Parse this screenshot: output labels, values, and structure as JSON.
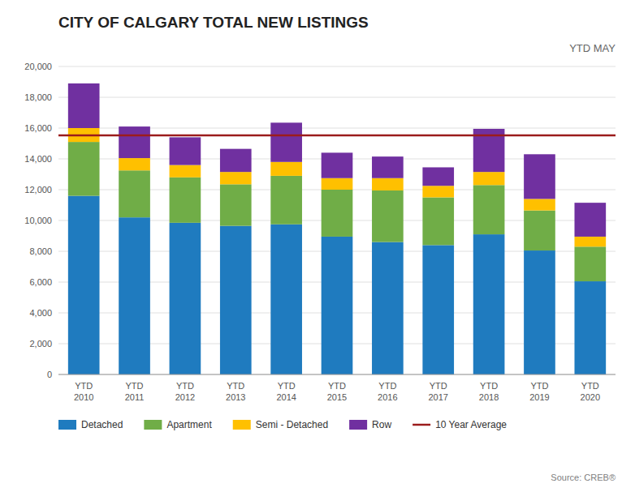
{
  "chart_data": {
    "type": "bar",
    "stacked": true,
    "title": "CITY OF CALGARY TOTAL NEW LISTINGS",
    "subtitle": "YTD  MAY",
    "annotations": [
      "Source: CREB®"
    ],
    "categories": [
      "YTD\n2010",
      "YTD\n2011",
      "YTD\n2012",
      "YTD\n2013",
      "YTD\n2014",
      "YTD\n2015",
      "YTD\n2016",
      "YTD\n2017",
      "YTD\n2018",
      "YTD\n2019",
      "YTD\n2020"
    ],
    "series": [
      {
        "name": "Detached",
        "color": "#1f7bbf",
        "values": [
          11600,
          10200,
          9850,
          9650,
          9750,
          8950,
          8600,
          8400,
          9100,
          8050,
          6050
        ]
      },
      {
        "name": "Apartment",
        "color": "#70ad47",
        "values": [
          3500,
          3050,
          2950,
          2700,
          3150,
          3050,
          3350,
          3100,
          3200,
          2600,
          2250
        ]
      },
      {
        "name": "Semi - Detached",
        "color": "#ffc000",
        "values": [
          900,
          800,
          800,
          800,
          900,
          750,
          800,
          750,
          850,
          750,
          650
        ]
      },
      {
        "name": "Row",
        "color": "#7030a0",
        "values": [
          2900,
          2050,
          1800,
          1500,
          2550,
          1650,
          1400,
          1200,
          2800,
          2900,
          2200
        ]
      }
    ],
    "average_line": {
      "name": "10 Year Average",
      "value": 15530,
      "color": "#9b1c1c"
    },
    "ylim": [
      0,
      20000
    ],
    "yticks": [
      0,
      {
        "value": 2000,
        "label": "2,000"
      },
      {
        "value": 4000,
        "label": "4,000"
      },
      {
        "value": 6000,
        "label": "6,000"
      },
      {
        "value": 8000,
        "label": "8,000"
      },
      {
        "value": 10000,
        "label": "10,000"
      },
      {
        "value": 12000,
        "label": "12,000"
      },
      {
        "value": 14000,
        "label": "14,000"
      },
      {
        "value": 16000,
        "label": "16,000"
      },
      {
        "value": 18000,
        "label": "18,000"
      },
      {
        "value": 20000,
        "label": "20,000"
      }
    ],
    "grid": true,
    "legend": "bottom"
  }
}
